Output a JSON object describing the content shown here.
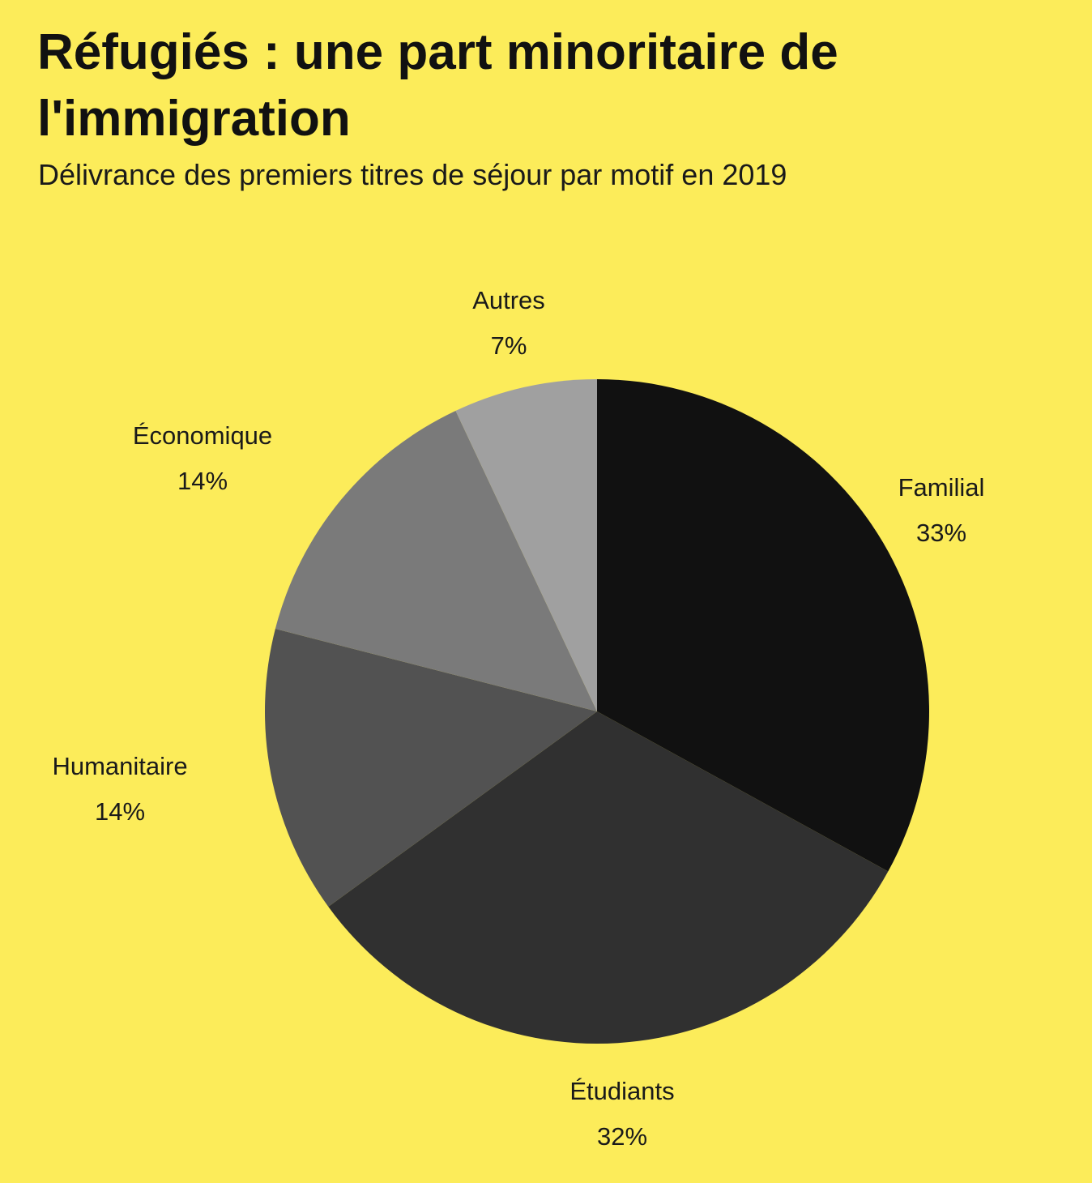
{
  "colors": {
    "background": "#FCEC5A",
    "text": "#111111"
  },
  "chart_data": {
    "type": "pie",
    "title": "Réfugiés : une part minoritaire de l'immigration",
    "subtitle": "Délivrance des premiers titres de séjour par motif en 2019",
    "slices": [
      {
        "label": "Familial",
        "value": 33,
        "display": "33%",
        "color": "#111111"
      },
      {
        "label": "Étudiants",
        "value": 32,
        "display": "32%",
        "color": "#303030"
      },
      {
        "label": "Humanitaire",
        "value": 14,
        "display": "14%",
        "color": "#525252"
      },
      {
        "label": "Économique",
        "value": 14,
        "display": "14%",
        "color": "#7a7a7a"
      },
      {
        "label": "Autres",
        "value": 7,
        "display": "7%",
        "color": "#a0a0a0"
      }
    ],
    "start_angle": "12 o'clock",
    "direction": "clockwise",
    "legend": "none"
  }
}
